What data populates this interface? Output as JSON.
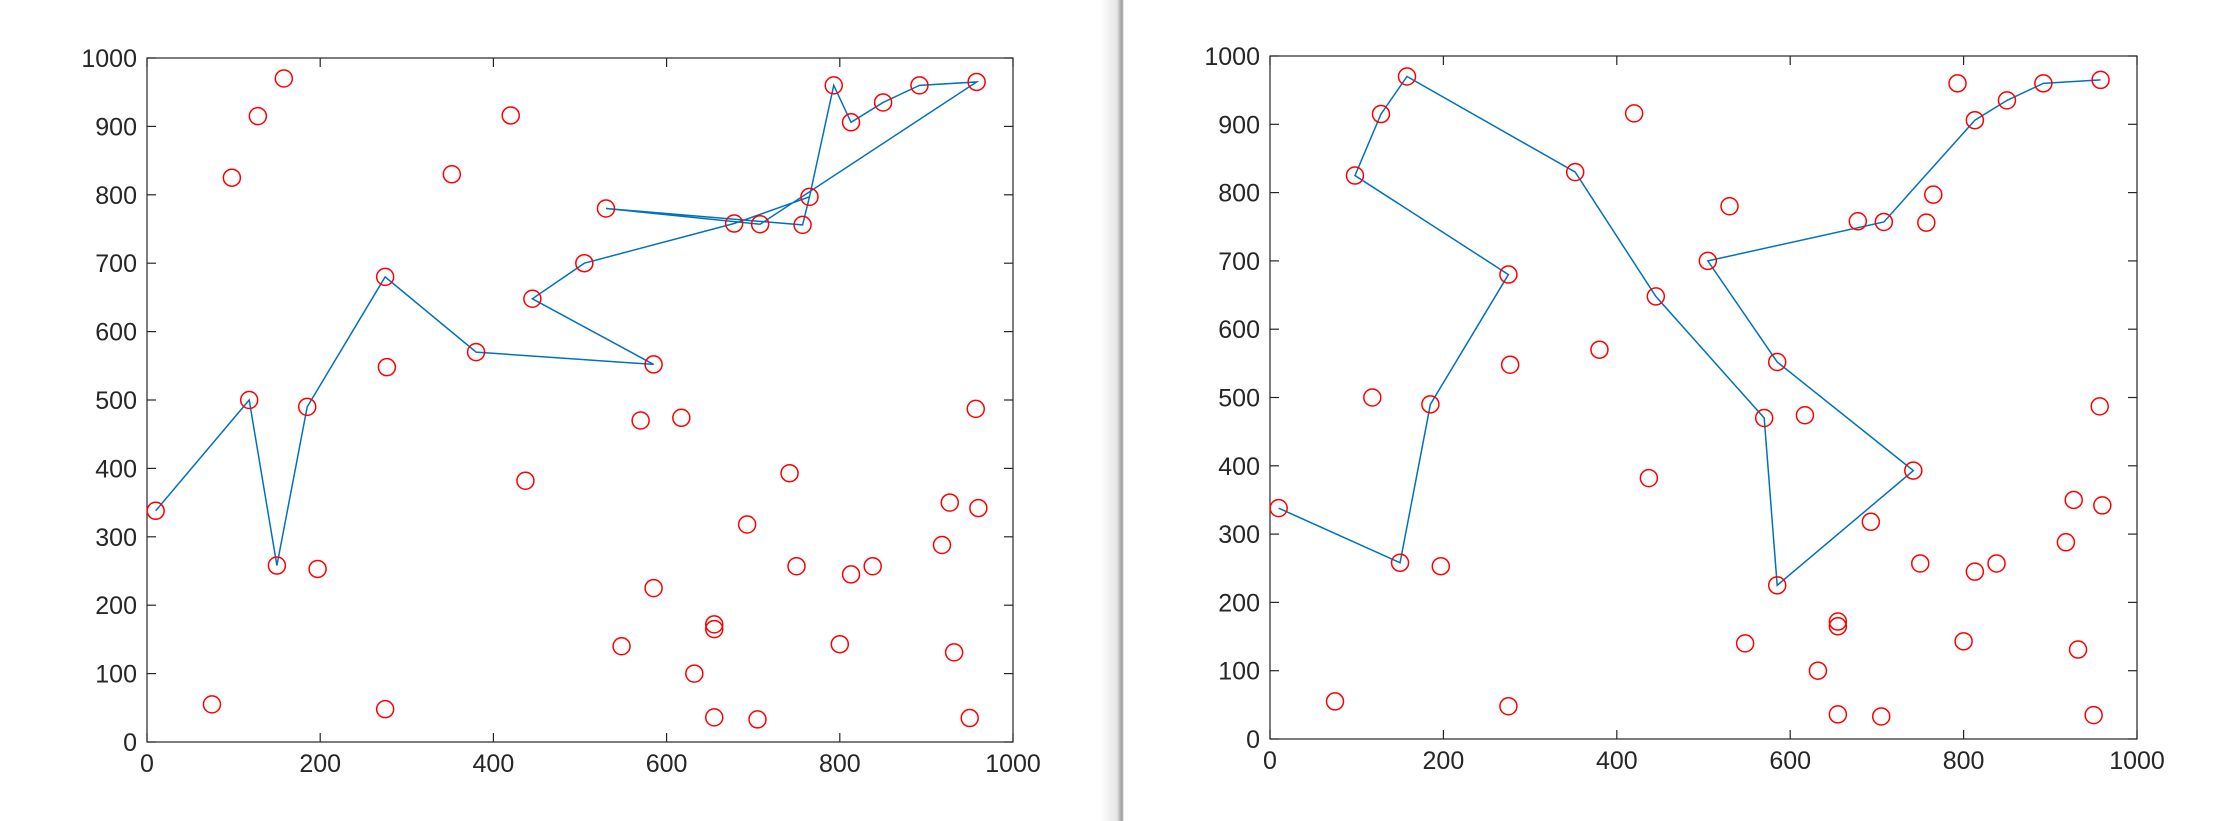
{
  "chart_data": [
    {
      "type": "scatter",
      "xlim": [
        0,
        1000
      ],
      "ylim": [
        0,
        1000
      ],
      "xticks": [
        0,
        200,
        400,
        600,
        800,
        1000
      ],
      "yticks": [
        0,
        100,
        200,
        300,
        400,
        500,
        600,
        700,
        800,
        900,
        1000
      ],
      "series": [
        {
          "type": "scatter",
          "color": "#ff0000",
          "x": [
            10,
            75,
            98,
            118,
            128,
            150,
            158,
            185,
            197,
            275,
            277,
            275,
            352,
            380,
            420,
            437,
            445,
            505,
            530,
            548,
            570,
            585,
            585,
            617,
            632,
            655,
            655,
            655,
            678,
            693,
            708,
            705,
            742,
            750,
            757,
            765,
            793,
            800,
            813,
            813,
            838,
            850,
            892,
            918,
            927,
            932,
            950,
            958,
            957,
            960
          ],
          "values": [
            338,
            55,
            825,
            500,
            915,
            258,
            970,
            490,
            253,
            680,
            548,
            48,
            830,
            570,
            916,
            382,
            648,
            700,
            780,
            140,
            470,
            552,
            225,
            474,
            100,
            172,
            165,
            36,
            758,
            318,
            757,
            33,
            393,
            257,
            756,
            797,
            960,
            143,
            906,
            245,
            257,
            935,
            960,
            288,
            350,
            131,
            35,
            965,
            487,
            342
          ]
        },
        {
          "type": "line",
          "color": "#0072bd",
          "x": [
            10,
            118,
            150,
            185,
            275,
            380,
            585,
            445,
            505,
            678,
            765,
            793,
            813,
            850,
            892,
            958,
            708,
            530,
            757,
            765
          ],
          "values": [
            338,
            500,
            258,
            490,
            680,
            570,
            552,
            648,
            700,
            758,
            797,
            960,
            906,
            935,
            960,
            965,
            757,
            780,
            756,
            797
          ]
        }
      ]
    },
    {
      "type": "scatter",
      "xlim": [
        0,
        1000
      ],
      "ylim": [
        0,
        1000
      ],
      "xticks": [
        0,
        200,
        400,
        600,
        800,
        1000
      ],
      "yticks": [
        0,
        100,
        200,
        300,
        400,
        500,
        600,
        700,
        800,
        900,
        1000
      ],
      "series": [
        {
          "type": "scatter",
          "color": "#ff0000",
          "x": [
            10,
            75,
            98,
            118,
            128,
            150,
            158,
            185,
            197,
            275,
            277,
            275,
            352,
            380,
            420,
            437,
            445,
            505,
            530,
            548,
            570,
            585,
            585,
            617,
            632,
            655,
            655,
            655,
            678,
            693,
            708,
            705,
            742,
            750,
            757,
            765,
            793,
            800,
            813,
            813,
            838,
            850,
            892,
            918,
            927,
            932,
            950,
            958,
            957,
            960
          ],
          "values": [
            338,
            55,
            825,
            500,
            915,
            258,
            970,
            490,
            253,
            680,
            548,
            48,
            830,
            570,
            916,
            382,
            648,
            700,
            780,
            140,
            470,
            552,
            225,
            474,
            100,
            172,
            165,
            36,
            758,
            318,
            757,
            33,
            393,
            257,
            756,
            797,
            960,
            143,
            906,
            245,
            257,
            935,
            960,
            288,
            350,
            131,
            35,
            965,
            487,
            342
          ]
        },
        {
          "type": "line",
          "color": "#0072bd",
          "x": [
            10,
            150,
            185,
            275,
            98,
            128,
            158,
            352,
            445,
            570,
            585,
            742,
            585,
            505,
            708,
            813,
            850,
            892,
            958
          ],
          "values": [
            338,
            258,
            490,
            680,
            825,
            915,
            970,
            830,
            648,
            470,
            225,
            393,
            552,
            700,
            757,
            906,
            935,
            960,
            965
          ]
        }
      ]
    }
  ]
}
